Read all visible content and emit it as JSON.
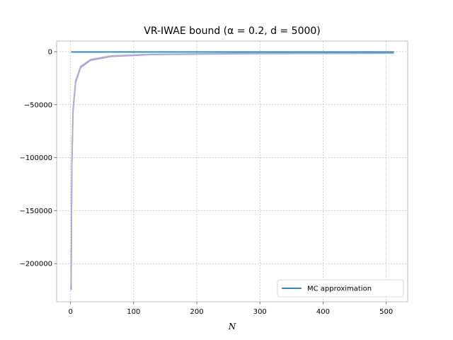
{
  "chart_data": {
    "type": "line",
    "title": "VR-IWAE bound (α = 0.2, d = 5000)",
    "xlabel": "N",
    "ylabel": "",
    "xlim": [
      -22,
      534
    ],
    "ylim": [
      -236000,
      10000
    ],
    "xticks": [
      0,
      100,
      200,
      300,
      400,
      500
    ],
    "xtick_labels": [
      "0",
      "100",
      "200",
      "300",
      "400",
      "500"
    ],
    "yticks": [
      0,
      -50000,
      -100000,
      -150000,
      -200000
    ],
    "ytick_labels": [
      "0",
      "−50000",
      "−100000",
      "−150000",
      "−200000"
    ],
    "grid": true,
    "legend": "lower-right",
    "series": [
      {
        "name": "MC approximation",
        "color": "#348abd",
        "x": [
          1,
          512
        ],
        "y": [
          -300,
          -300
        ]
      },
      {
        "name": "",
        "color": "#988ed5",
        "x": [
          1,
          2,
          4,
          8,
          16,
          32,
          64,
          128,
          256,
          512
        ],
        "y": [
          -225000,
          -113000,
          -57000,
          -29000,
          -15000,
          -8000,
          -4500,
          -2800,
          -2000,
          -1500
        ]
      },
      {
        "name": "",
        "color": "#a9a0d8",
        "x": [
          1,
          2,
          4,
          8,
          16,
          32,
          64,
          128,
          256,
          512
        ],
        "y": [
          -222000,
          -110000,
          -55000,
          -28000,
          -14500,
          -7600,
          -4200,
          -2600,
          -1800,
          -1300
        ]
      },
      {
        "name": "",
        "color": "#b3aed6",
        "x": [
          1,
          2,
          4,
          8,
          16,
          32,
          64,
          128,
          256,
          512
        ],
        "y": [
          -219000,
          -108000,
          -54000,
          -27500,
          -14000,
          -7300,
          -4000,
          -2400,
          -1700,
          -1200
        ]
      }
    ]
  }
}
